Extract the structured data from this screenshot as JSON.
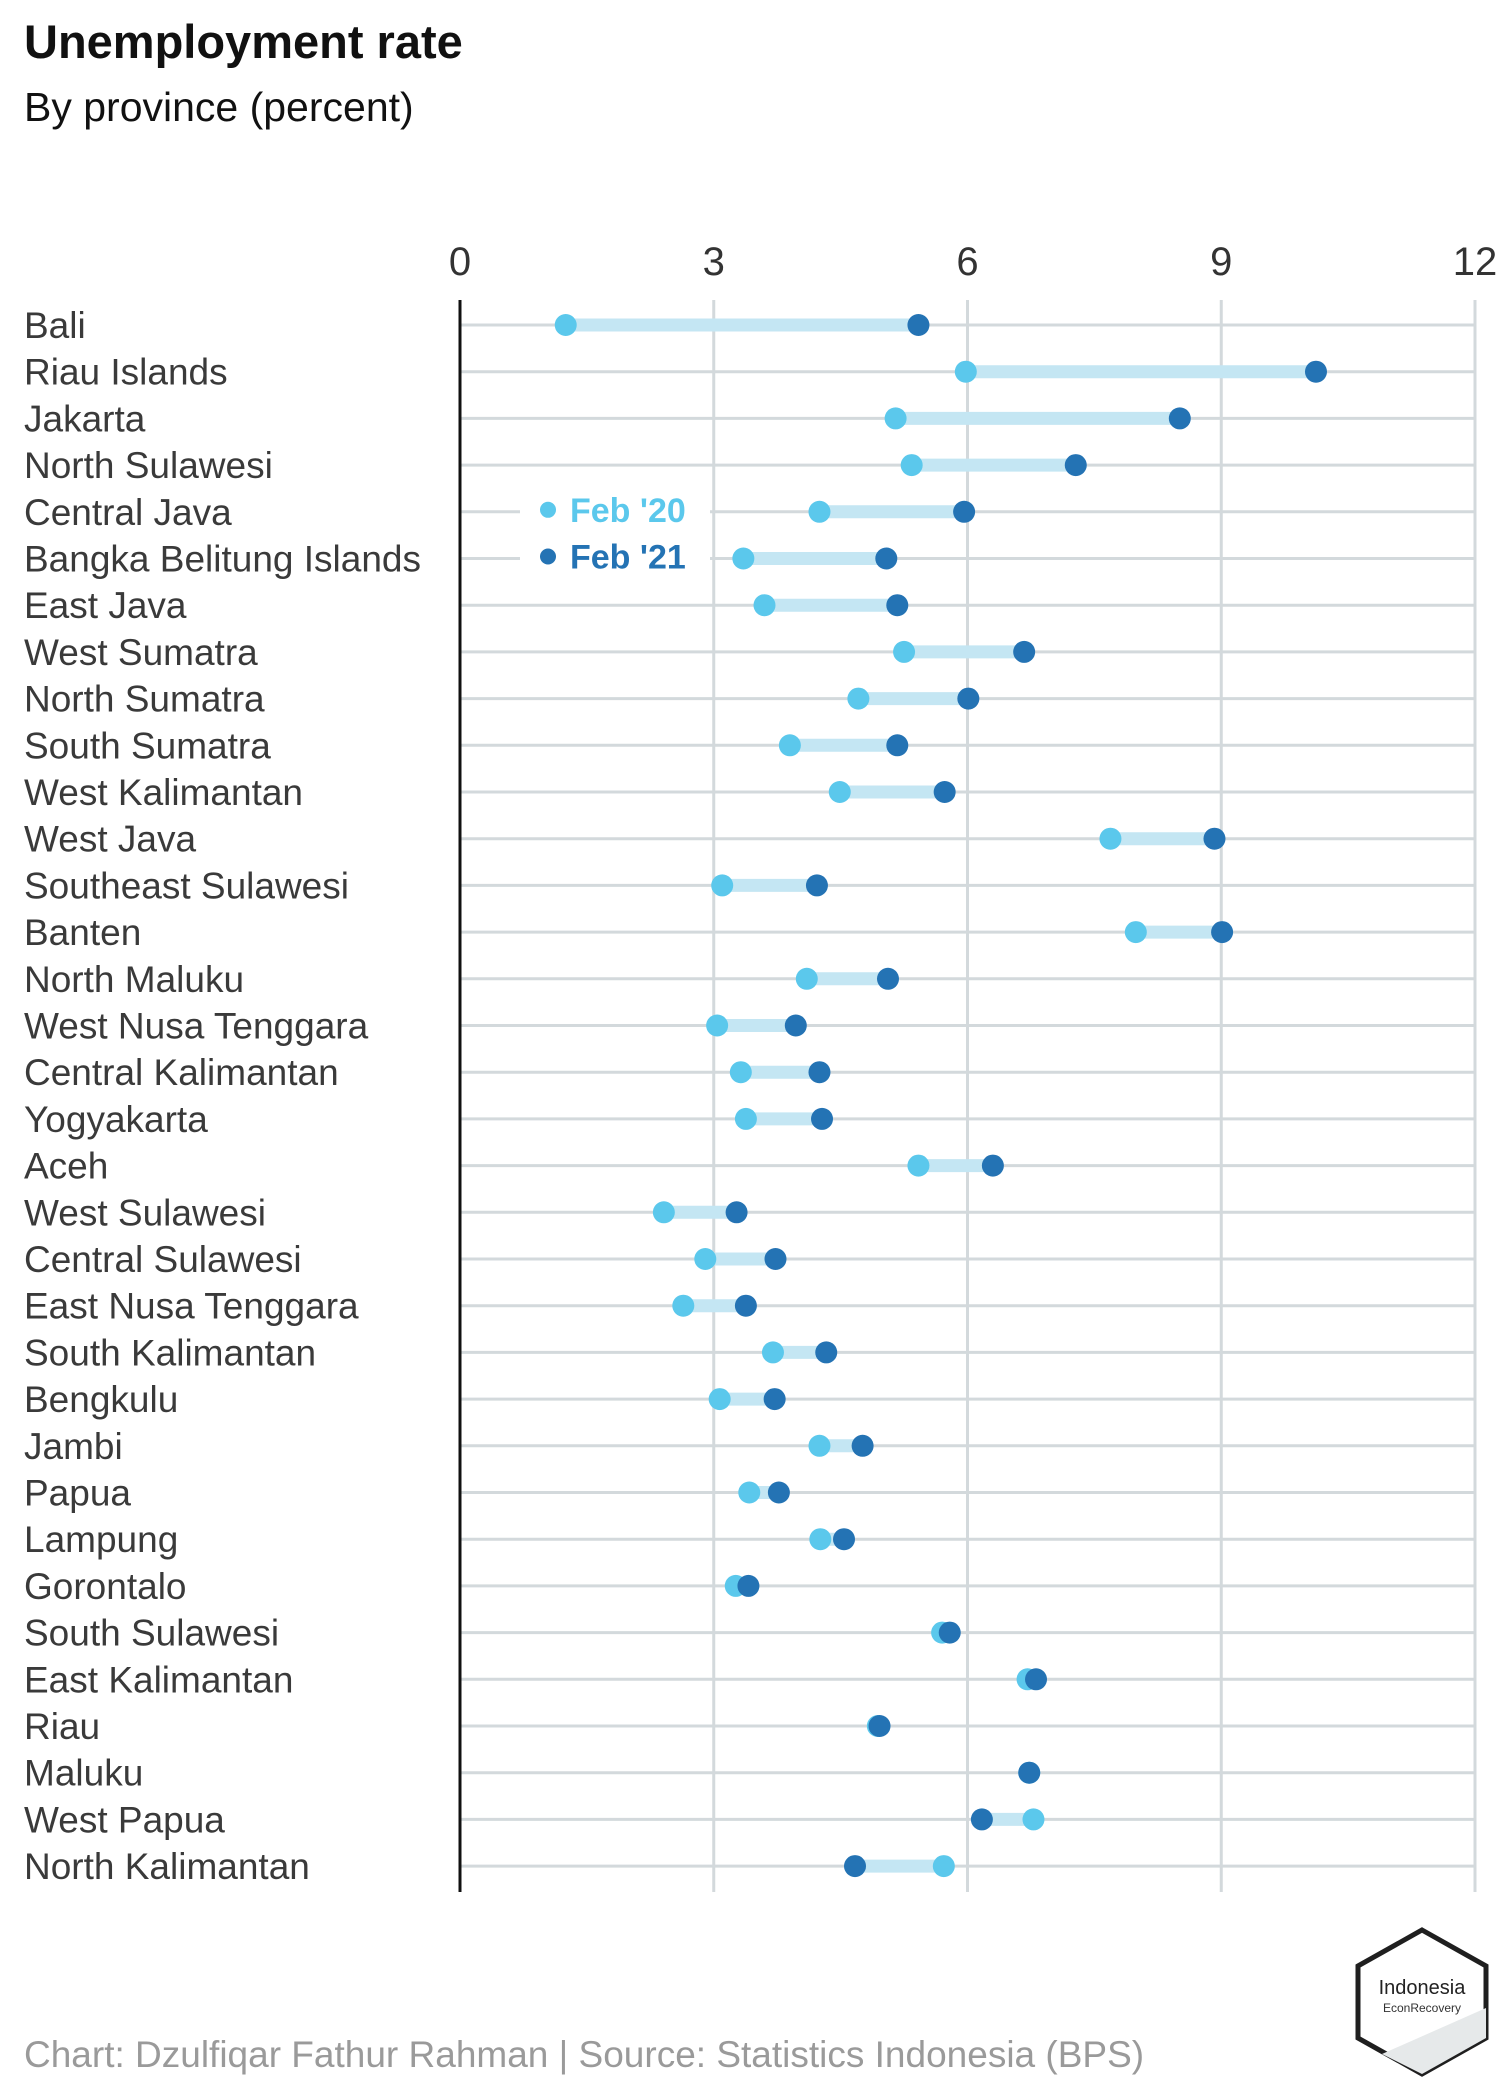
{
  "title": "Unemployment rate",
  "subtitle": "By province (percent)",
  "source": "Chart: Dzulfiqar Fathur Rahman | Source: Statistics Indonesia (BPS)",
  "logo": {
    "line1": "Indonesia",
    "line2": "EconRecovery"
  },
  "colors": {
    "feb20": "#5bc8ec",
    "feb21": "#2473b4",
    "connector": "#c4e6f3",
    "grid": "#d3d9dc",
    "axis": "#111111"
  },
  "chart_data": {
    "type": "dumbbell",
    "xlim": [
      0,
      12
    ],
    "xticks": [
      "0",
      "3",
      "6",
      "9",
      "12"
    ],
    "grid": true,
    "legend_position": "inside, upper-left",
    "series": [
      {
        "name": "Feb '20",
        "color": "#5bc8ec"
      },
      {
        "name": "Feb '21",
        "color": "#2473b4"
      }
    ],
    "rows": [
      {
        "province": "Bali",
        "feb20": 1.25,
        "feb21": 5.42
      },
      {
        "province": "Riau Islands",
        "feb20": 5.98,
        "feb21": 10.12
      },
      {
        "province": "Jakarta",
        "feb20": 5.15,
        "feb21": 8.51
      },
      {
        "province": "North Sulawesi",
        "feb20": 5.34,
        "feb21": 7.28
      },
      {
        "province": "Central Java",
        "feb20": 4.25,
        "feb21": 5.96
      },
      {
        "province": "Bangka Belitung Islands",
        "feb20": 3.35,
        "feb21": 5.04
      },
      {
        "province": "East Java",
        "feb20": 3.6,
        "feb21": 5.17
      },
      {
        "province": "West Sumatra",
        "feb20": 5.25,
        "feb21": 6.67
      },
      {
        "province": "North Sumatra",
        "feb20": 4.71,
        "feb21": 6.01
      },
      {
        "province": "South Sumatra",
        "feb20": 3.9,
        "feb21": 5.17
      },
      {
        "province": "West Kalimantan",
        "feb20": 4.49,
        "feb21": 5.73
      },
      {
        "province": "West Java",
        "feb20": 7.69,
        "feb21": 8.92
      },
      {
        "province": "Southeast Sulawesi",
        "feb20": 3.1,
        "feb21": 4.22
      },
      {
        "province": "Banten",
        "feb20": 7.99,
        "feb21": 9.01
      },
      {
        "province": "North Maluku",
        "feb20": 4.1,
        "feb21": 5.06
      },
      {
        "province": "West Nusa Tenggara",
        "feb20": 3.04,
        "feb21": 3.97
      },
      {
        "province": "Central Kalimantan",
        "feb20": 3.32,
        "feb21": 4.25
      },
      {
        "province": "Yogyakarta",
        "feb20": 3.38,
        "feb21": 4.28
      },
      {
        "province": "Aceh",
        "feb20": 5.42,
        "feb21": 6.3
      },
      {
        "province": "West Sulawesi",
        "feb20": 2.41,
        "feb21": 3.27
      },
      {
        "province": "Central Sulawesi",
        "feb20": 2.9,
        "feb21": 3.73
      },
      {
        "province": "East Nusa Tenggara",
        "feb20": 2.64,
        "feb21": 3.38
      },
      {
        "province": "South Kalimantan",
        "feb20": 3.7,
        "feb21": 4.33
      },
      {
        "province": "Bengkulu",
        "feb20": 3.07,
        "feb21": 3.72
      },
      {
        "province": "Jambi",
        "feb20": 4.25,
        "feb21": 4.76
      },
      {
        "province": "Papua",
        "feb20": 3.42,
        "feb21": 3.77
      },
      {
        "province": "Lampung",
        "feb20": 4.26,
        "feb21": 4.54
      },
      {
        "province": "Gorontalo",
        "feb20": 3.26,
        "feb21": 3.41
      },
      {
        "province": "South Sulawesi",
        "feb20": 5.7,
        "feb21": 5.79
      },
      {
        "province": "East Kalimantan",
        "feb20": 6.71,
        "feb21": 6.81
      },
      {
        "province": "Riau",
        "feb20": 4.94,
        "feb21": 4.96
      },
      {
        "province": "Maluku",
        "feb20": 6.73,
        "feb21": 6.73
      },
      {
        "province": "West Papua",
        "feb20": 6.78,
        "feb21": 6.17
      },
      {
        "province": "North Kalimantan",
        "feb20": 5.72,
        "feb21": 4.67
      }
    ]
  }
}
